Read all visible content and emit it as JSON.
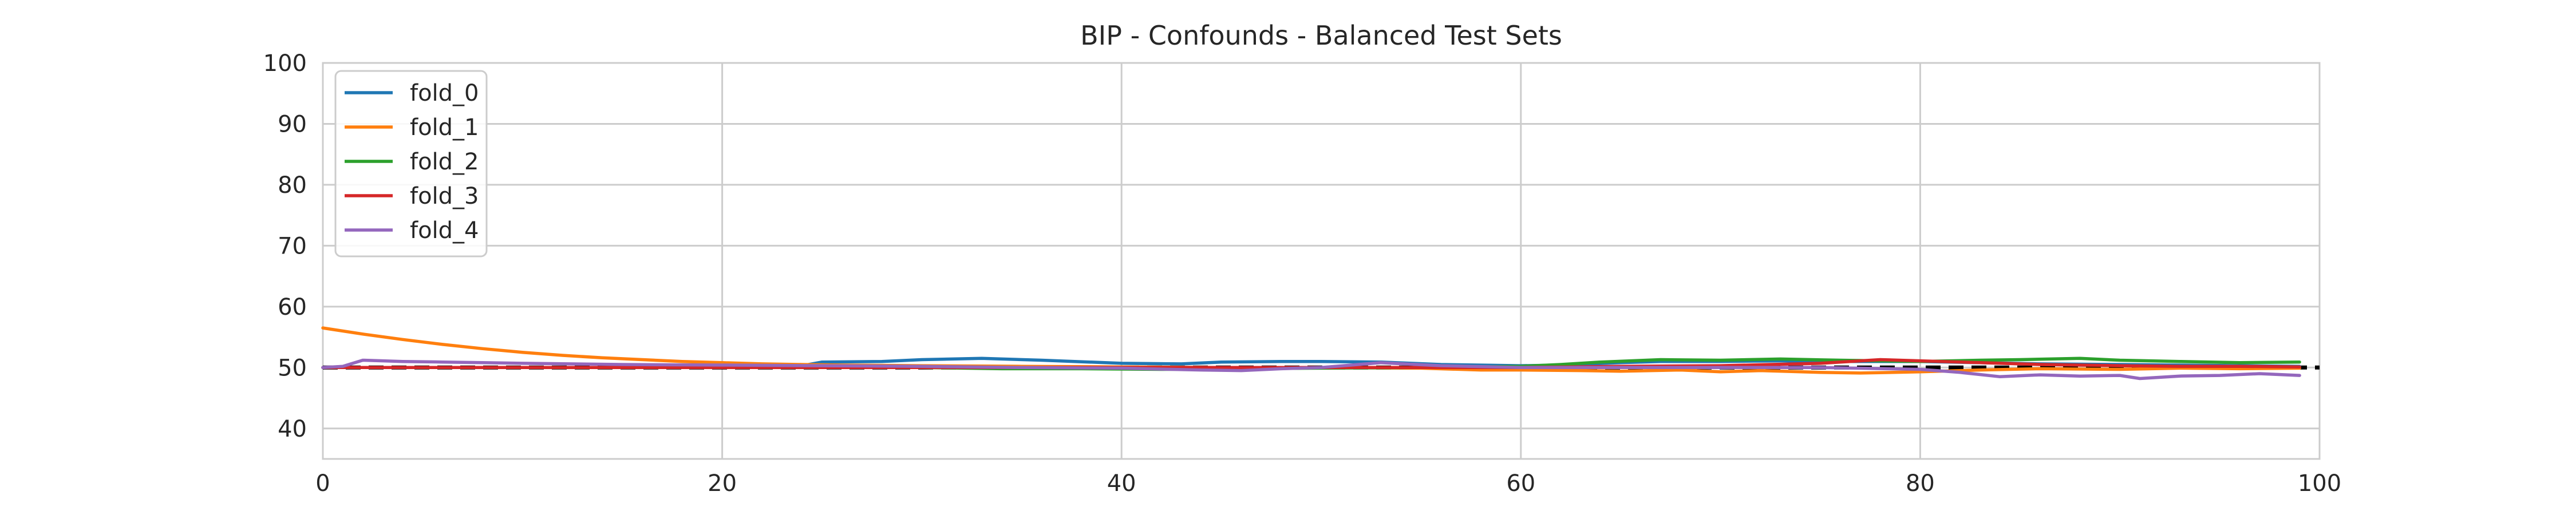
{
  "chart_data": {
    "type": "line",
    "title": "BIP - Confounds - Balanced Test Sets",
    "xlabel": "",
    "ylabel": "",
    "xlim": [
      0,
      100
    ],
    "ylim": [
      35,
      100
    ],
    "xticks": [
      0,
      20,
      40,
      60,
      80,
      100
    ],
    "yticks": [
      40,
      50,
      60,
      70,
      80,
      90,
      100
    ],
    "grid": true,
    "legend_position": "top-left",
    "reference_line": {
      "y": 50,
      "style": "dashed",
      "color": "#000000"
    },
    "series": [
      {
        "name": "fold_0",
        "color": "#1f77b4",
        "x": [
          0,
          5,
          10,
          15,
          20,
          24,
          25,
          28,
          30,
          33,
          36,
          40,
          43,
          45,
          48,
          50,
          53,
          56,
          60,
          62,
          65,
          67,
          70,
          73,
          76,
          80,
          83,
          86,
          90,
          93,
          96,
          99
        ],
        "y": [
          50.0,
          50.0,
          50.0,
          50.0,
          50.1,
          50.3,
          50.9,
          51.0,
          51.3,
          51.5,
          51.2,
          50.7,
          50.6,
          50.9,
          51.0,
          51.0,
          50.9,
          50.5,
          50.3,
          50.4,
          50.8,
          51.0,
          51.0,
          51.1,
          51.0,
          51.0,
          50.8,
          50.6,
          50.5,
          50.4,
          50.3,
          50.2
        ]
      },
      {
        "name": "fold_1",
        "color": "#ff7f0e",
        "x": [
          0,
          2,
          4,
          6,
          8,
          10,
          12,
          14,
          16,
          18,
          20,
          22,
          24,
          26,
          30,
          35,
          40,
          45,
          50,
          55,
          58,
          60,
          63,
          65,
          68,
          70,
          72,
          75,
          77,
          80,
          83,
          86,
          90,
          93,
          96,
          99
        ],
        "y": [
          56.5,
          55.5,
          54.6,
          53.8,
          53.1,
          52.5,
          52.0,
          51.6,
          51.3,
          51.0,
          50.8,
          50.6,
          50.5,
          50.4,
          50.3,
          50.2,
          50.1,
          50.0,
          50.0,
          49.9,
          49.6,
          49.6,
          49.5,
          49.4,
          49.6,
          49.3,
          49.5,
          49.2,
          49.1,
          49.3,
          49.6,
          49.8,
          49.7,
          49.9,
          49.8,
          49.9
        ]
      },
      {
        "name": "fold_2",
        "color": "#2ca02c",
        "x": [
          0,
          10,
          20,
          30,
          34,
          38,
          42,
          46,
          50,
          55,
          60,
          62,
          64,
          67,
          70,
          73,
          76,
          80,
          83,
          85,
          88,
          90,
          93,
          96,
          99
        ],
        "y": [
          50.0,
          50.0,
          50.0,
          50.0,
          49.8,
          49.8,
          49.7,
          49.8,
          49.9,
          50.0,
          50.2,
          50.5,
          50.9,
          51.3,
          51.2,
          51.4,
          51.2,
          51.0,
          51.2,
          51.3,
          51.5,
          51.2,
          51.0,
          50.8,
          50.9
        ]
      },
      {
        "name": "fold_3",
        "color": "#d62728",
        "x": [
          0,
          10,
          20,
          30,
          40,
          50,
          60,
          65,
          70,
          75,
          78,
          80,
          83,
          86,
          90,
          93,
          96,
          99
        ],
        "y": [
          50.0,
          50.0,
          50.0,
          50.0,
          50.0,
          50.0,
          50.0,
          50.2,
          50.3,
          50.7,
          51.3,
          51.1,
          50.8,
          50.5,
          50.3,
          50.2,
          50.2,
          50.1
        ]
      },
      {
        "name": "fold_4",
        "color": "#9467bd",
        "x": [
          0,
          1,
          2,
          4,
          6,
          8,
          10,
          15,
          20,
          25,
          30,
          35,
          40,
          44,
          46,
          48,
          50,
          53,
          56,
          60,
          65,
          70,
          75,
          80,
          82,
          84,
          86,
          88,
          90,
          91,
          93,
          95,
          97,
          99
        ],
        "y": [
          50.0,
          50.2,
          51.2,
          51.0,
          50.9,
          50.8,
          50.7,
          50.5,
          50.4,
          50.3,
          50.2,
          50.0,
          49.9,
          49.6,
          49.5,
          49.8,
          50.0,
          50.8,
          50.3,
          50.0,
          50.0,
          50.0,
          50.0,
          49.7,
          49.2,
          48.5,
          48.8,
          48.6,
          48.7,
          48.2,
          48.6,
          48.7,
          49.0,
          48.7
        ]
      }
    ]
  }
}
